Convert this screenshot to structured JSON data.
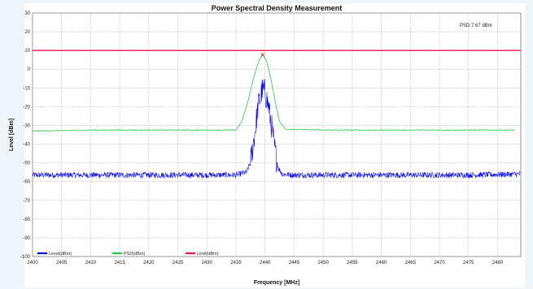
{
  "chart_data": {
    "type": "line",
    "title": "Power Spectral Density Measurement",
    "xlabel": "Frequency [MHz]",
    "ylabel": "Level [dBm]",
    "xlim": [
      2400,
      2484
    ],
    "ylim": [
      -100,
      30
    ],
    "x_ticks": [
      2400,
      2405,
      2410,
      2415,
      2420,
      2425,
      2430,
      2435,
      2440,
      2445,
      2450,
      2455,
      2460,
      2465,
      2470,
      2475,
      2480
    ],
    "y_ticks": [
      30,
      20,
      10,
      0,
      -10,
      -20,
      -30,
      -40,
      -50,
      -60,
      -70,
      -80,
      -90,
      -100
    ],
    "grid": true,
    "legend_position": "bottom-left",
    "annotation": "PSD:7.67 dBm",
    "marker": {
      "x": 2439.6,
      "y": 7.67
    },
    "series": [
      {
        "name": "Level(dBm)",
        "color": "#0000ee",
        "points": [
          [
            2400,
            -56.5
          ],
          [
            2410,
            -56.5
          ],
          [
            2420,
            -56.5
          ],
          [
            2430,
            -56.5
          ],
          [
            2435,
            -56.5
          ],
          [
            2436.8,
            -55
          ],
          [
            2437.5,
            -50
          ],
          [
            2438.2,
            -35
          ],
          [
            2438.8,
            -20
          ],
          [
            2439.3,
            -13
          ],
          [
            2439.6,
            -11
          ],
          [
            2440,
            -12
          ],
          [
            2440.6,
            -20
          ],
          [
            2441.2,
            -32
          ],
          [
            2441.8,
            -45
          ],
          [
            2442.3,
            -53
          ],
          [
            2443,
            -56
          ],
          [
            2445,
            -56.5
          ],
          [
            2455,
            -56.5
          ],
          [
            2465,
            -56.5
          ],
          [
            2475,
            -56.5
          ],
          [
            2484,
            -56
          ]
        ]
      },
      {
        "name": "PSD(dBm)",
        "color": "#22cc44",
        "points": [
          [
            2400,
            -33
          ],
          [
            2410,
            -32.5
          ],
          [
            2420,
            -32.5
          ],
          [
            2430,
            -32.5
          ],
          [
            2435,
            -32.5
          ],
          [
            2436,
            -28
          ],
          [
            2437,
            -18
          ],
          [
            2438,
            -5
          ],
          [
            2439,
            5
          ],
          [
            2439.6,
            7.67
          ],
          [
            2440.2,
            5
          ],
          [
            2441,
            -5
          ],
          [
            2441.8,
            -18
          ],
          [
            2442.5,
            -28
          ],
          [
            2443.5,
            -32
          ],
          [
            2450,
            -32.5
          ],
          [
            2460,
            -32.5
          ],
          [
            2470,
            -32.5
          ],
          [
            2483,
            -32.5
          ]
        ]
      },
      {
        "name": "Limit(dBm)",
        "color": "#ee1144",
        "points": [
          [
            2400,
            10
          ],
          [
            2484,
            10
          ]
        ]
      }
    ]
  }
}
